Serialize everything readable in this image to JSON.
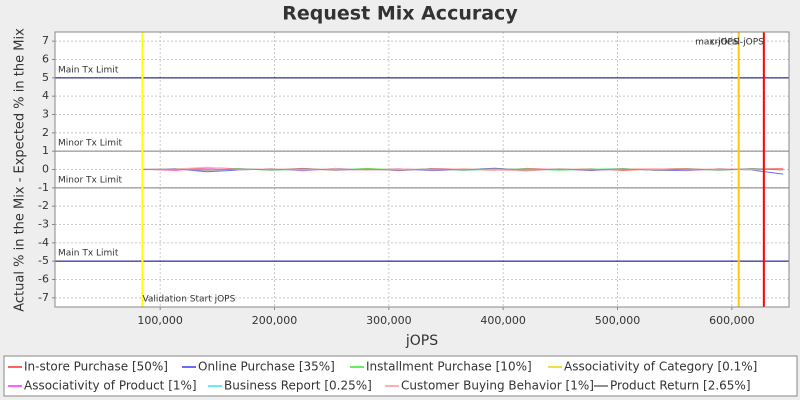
{
  "chart_data": {
    "type": "line",
    "title": "Request Mix Accuracy",
    "x_label": "jOPS",
    "y_label": "Actual % in the Mix - Expected % in the Mix",
    "xlim": [
      8000,
      650000
    ],
    "ylim": [
      -7.5,
      7.5
    ],
    "xticks": [
      {
        "value": 100000,
        "label": "100,000"
      },
      {
        "value": 200000,
        "label": "200,000"
      },
      {
        "value": 300000,
        "label": "300,000"
      },
      {
        "value": 400000,
        "label": "400,000"
      },
      {
        "value": 500000,
        "label": "500,000"
      },
      {
        "value": 600000,
        "label": "600,000"
      }
    ],
    "yticks": [
      7,
      6,
      5,
      4,
      3,
      2,
      1,
      0,
      -1,
      -2,
      -3,
      -4,
      -5,
      -6,
      -7
    ],
    "grid": true,
    "x": [
      85000,
      113000,
      141000,
      169000,
      197000,
      225000,
      253000,
      281000,
      309000,
      337000,
      365000,
      393000,
      421000,
      449000,
      477000,
      505000,
      533000,
      561000,
      589000,
      617000,
      645000
    ],
    "series": [
      {
        "name": "In-store Purchase [50%]",
        "color": "#ff6060",
        "values": [
          0.02,
          -0.05,
          0.1,
          0.04,
          -0.03,
          0.06,
          -0.04,
          0.03,
          -0.06,
          0.05,
          0.02,
          -0.04,
          0.06,
          -0.02,
          0.04,
          -0.05,
          0.03,
          0.05,
          -0.03,
          0.02,
          0.06
        ]
      },
      {
        "name": "Online Purchase [35%]",
        "color": "#6a6aff",
        "values": [
          -0.01,
          0.04,
          -0.12,
          -0.03,
          0.05,
          -0.07,
          0.06,
          -0.02,
          0.04,
          -0.06,
          -0.01,
          0.07,
          -0.05,
          0.03,
          -0.06,
          0.04,
          -0.04,
          -0.06,
          0.05,
          -0.03,
          -0.25
        ]
      },
      {
        "name": "Installment Purchase [10%]",
        "color": "#60f060",
        "values": [
          0,
          0.03,
          -0.02,
          0.05,
          -0.04,
          0.02,
          -0.03,
          0.06,
          -0.02,
          0.03,
          -0.05,
          0.02,
          0.03,
          -0.04,
          0.02,
          0.05,
          -0.02,
          0.03,
          -0.04,
          0.05,
          -0.02
        ]
      },
      {
        "name": "Associativity of Category [0.1%]",
        "color": "#f0e040",
        "values": [
          0,
          0.01,
          -0.01,
          0,
          0.01,
          -0.01,
          0,
          0.01,
          0,
          -0.01,
          0,
          0.01,
          -0.01,
          0,
          0.01,
          0,
          -0.01,
          0,
          0.01,
          -0.01,
          0
        ]
      },
      {
        "name": "Associativity of Product [1%]",
        "color": "#ff60ff",
        "values": [
          0,
          -0.02,
          0.03,
          -0.01,
          0.02,
          -0.02,
          0.01,
          -0.03,
          0.02,
          0,
          -0.02,
          0.03,
          -0.01,
          0.02,
          -0.03,
          0.01,
          0.02,
          -0.02,
          0.01,
          0.03,
          -0.01
        ]
      },
      {
        "name": "Business Report [0.25%]",
        "color": "#60f0f0",
        "values": [
          0,
          0.01,
          -0.02,
          0.01,
          0,
          -0.01,
          0.02,
          -0.01,
          0,
          0.01,
          -0.02,
          0.01,
          0,
          -0.01,
          0.01,
          0.02,
          -0.01,
          0,
          0.01,
          -0.01,
          0.01
        ]
      },
      {
        "name": "Customer Buying Behavior [1%]",
        "color": "#ffb0b0",
        "values": [
          0,
          0.03,
          0.12,
          -0.02,
          0.04,
          -0.03,
          0.05,
          -0.04,
          0.03,
          -0.02,
          0.05,
          -0.03,
          -0.08,
          0.04,
          -0.03,
          0.02,
          0.05,
          -0.03,
          0.04,
          -0.02,
          0.03
        ]
      },
      {
        "name": "Product Return [2.65%]",
        "color": "#909090",
        "values": [
          0,
          0.02,
          -0.04,
          0.03,
          -0.02,
          0.04,
          -0.03,
          0.02,
          -0.04,
          0.03,
          -0.02,
          0.05,
          -0.03,
          0.02,
          -0.02,
          0.03,
          -0.04,
          0.02,
          -0.03,
          0.04,
          -0.02
        ]
      }
    ],
    "reference_lines": [
      {
        "value": 5,
        "label": "Main Tx Limit",
        "color": "#000080"
      },
      {
        "value": 1,
        "label": "Minor Tx Limit",
        "color": "#808080"
      },
      {
        "value": -1,
        "label": "Minor Tx Limit",
        "color": "#808080"
      },
      {
        "value": -5,
        "label": "Main Tx Limit",
        "color": "#000080"
      }
    ],
    "vertical_markers": [
      {
        "value": 84500,
        "label": "Validation Start jOPS",
        "color": "#ffff00",
        "label_position": "bottom"
      },
      {
        "value": 606000,
        "label": "max-jOPS",
        "color": "#ffc800",
        "label_position": "top"
      },
      {
        "value": 628000,
        "label": "critical-jOPS",
        "color": "#ff0000",
        "label_position": "top"
      }
    ]
  }
}
